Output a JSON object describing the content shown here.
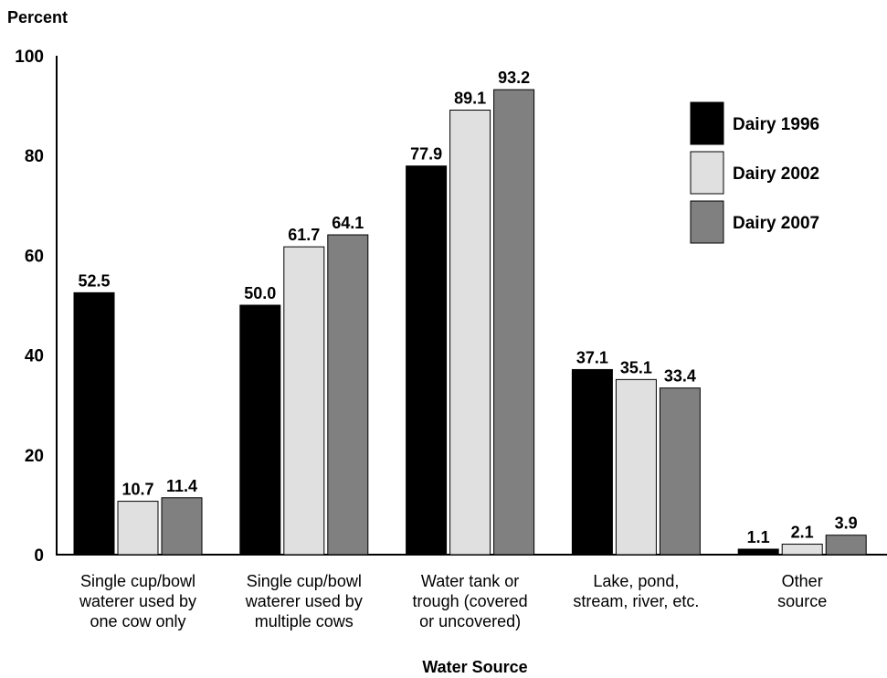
{
  "chart_data": {
    "type": "bar",
    "title": "",
    "ylabel": "Percent",
    "xlabel": "Water Source",
    "ylim": [
      0,
      100
    ],
    "yticks": [
      0,
      20,
      40,
      60,
      80,
      100
    ],
    "grid": false,
    "legend_position": "top-right",
    "categories": [
      [
        "Single cup/bowl",
        "waterer used by",
        "one cow only"
      ],
      [
        "Single cup/bowl",
        "waterer used by",
        "multiple cows"
      ],
      [
        "Water tank or",
        "trough (covered",
        "or uncovered)"
      ],
      [
        "Lake, pond,",
        "stream, river, etc."
      ],
      [
        "Other",
        "source"
      ]
    ],
    "series": [
      {
        "name": "Dairy 1996",
        "color": "#000000",
        "values": [
          52.5,
          50.0,
          77.9,
          37.1,
          1.1
        ],
        "labels": [
          "52.5",
          "50.0",
          "77.9",
          "37.1",
          "1.1"
        ]
      },
      {
        "name": "Dairy 2002",
        "color": "#e0e0e0",
        "values": [
          10.7,
          61.7,
          89.1,
          35.1,
          2.1
        ],
        "labels": [
          "10.7",
          "61.7",
          "89.1",
          "35.1",
          "2.1"
        ]
      },
      {
        "name": "Dairy 2007",
        "color": "#808080",
        "values": [
          11.4,
          64.1,
          93.2,
          33.4,
          3.9
        ],
        "labels": [
          "11.4",
          "64.1",
          "93.2",
          "33.4",
          "3.9"
        ]
      }
    ]
  }
}
